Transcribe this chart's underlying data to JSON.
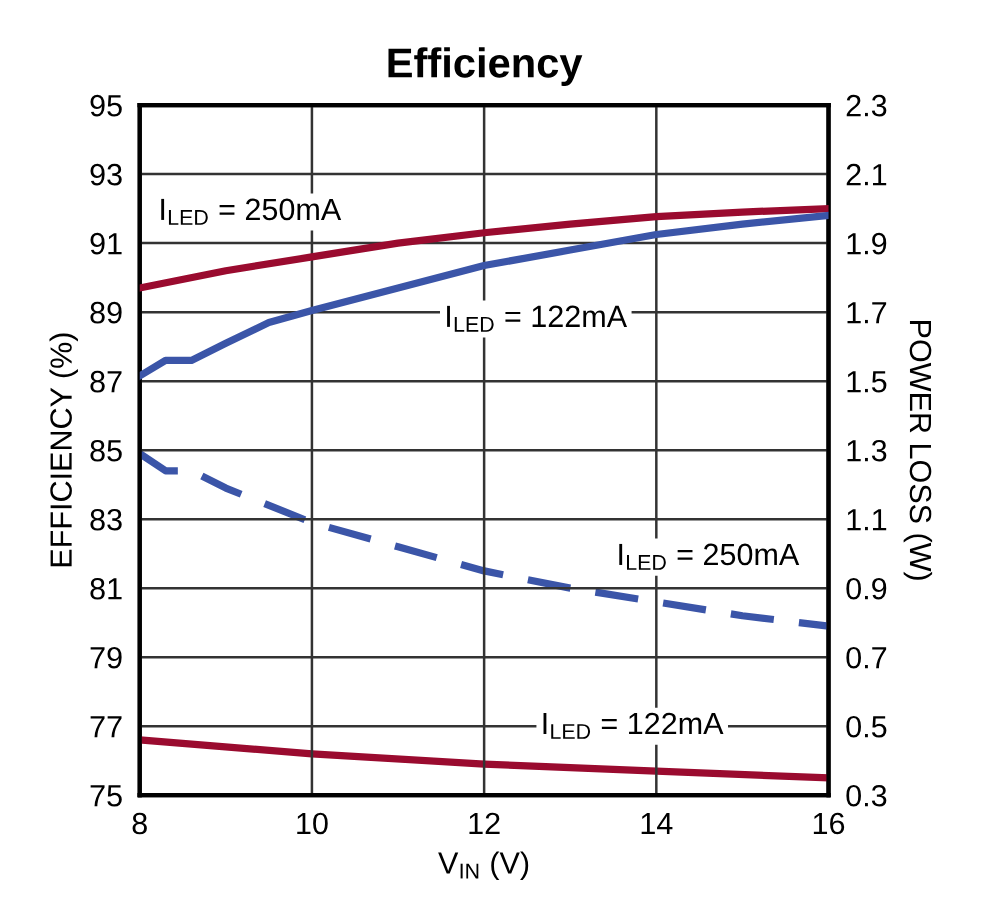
{
  "chart_data": {
    "type": "line",
    "title": "Efficiency",
    "xlabel": "V$_{IN}$ (V)",
    "ylabel": "EFFICIENCY (%)",
    "y2label": "POWER LOSS (W)",
    "xlim": [
      8,
      16
    ],
    "xticks": [
      8,
      10,
      12,
      14,
      16
    ],
    "ylim": [
      75,
      95
    ],
    "yticks": [
      75,
      77,
      79,
      81,
      83,
      85,
      87,
      89,
      91,
      93,
      95
    ],
    "y2lim": [
      0.3,
      2.3
    ],
    "y2ticks": [
      0.3,
      0.5,
      0.7,
      0.9,
      1.1,
      1.3,
      1.5,
      1.7,
      1.9,
      2.1,
      2.3
    ],
    "grid": true,
    "legend": false,
    "series": [
      {
        "name": "I$_{LED}$ = 250mA",
        "color": "#9a0b2f",
        "line_style": "solid",
        "x": [
          8,
          9,
          10,
          11,
          12,
          13,
          14,
          15,
          16
        ],
        "values": [
          89.7,
          90.2,
          90.6,
          91.0,
          91.3,
          91.55,
          91.77,
          91.9,
          92.0
        ]
      },
      {
        "name": "I$_{LED}$ = 122mA",
        "color": "#3b55a8",
        "line_style": "solid",
        "x": [
          8,
          8.3,
          8.6,
          9,
          9.5,
          10,
          11,
          12,
          13,
          14,
          15,
          16
        ],
        "values": [
          87.15,
          87.6,
          87.6,
          88.1,
          88.7,
          89.05,
          89.7,
          90.35,
          90.8,
          91.25,
          91.55,
          91.8
        ]
      },
      {
        "name": "I$_{LED}$ = 250mA",
        "color": "#3b55a8",
        "line_style": "dashed",
        "axis": "y2",
        "x": [
          8,
          8.3,
          8.6,
          9,
          10,
          11,
          12,
          13,
          14,
          15,
          16
        ],
        "values": [
          1.29,
          1.24,
          1.24,
          1.19,
          1.09,
          1.02,
          0.95,
          0.9,
          0.86,
          0.82,
          0.79
        ]
      },
      {
        "name": "I$_{LED}$ = 122mA",
        "color": "#9a0b2f",
        "line_style": "solid",
        "axis": "y2",
        "x": [
          8,
          10,
          12,
          14,
          16
        ],
        "values": [
          0.46,
          0.42,
          0.39,
          0.37,
          0.35
        ]
      }
    ]
  }
}
